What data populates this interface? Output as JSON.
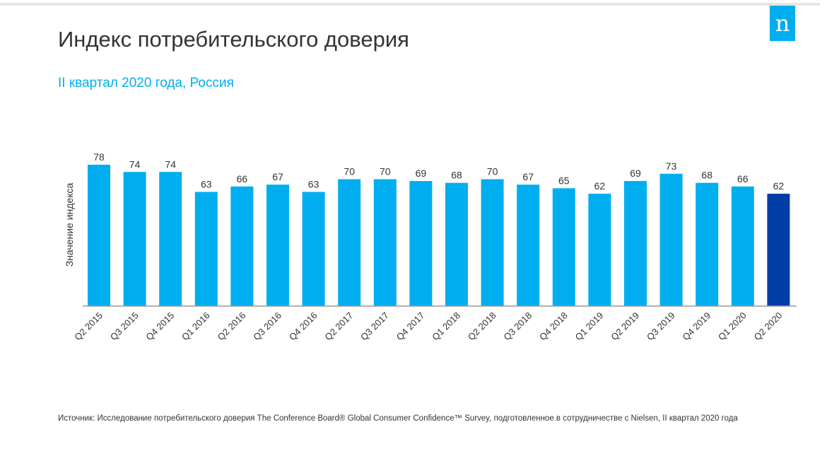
{
  "title": "Индекс потребительского доверия",
  "subtitle": "II квартал 2020 года, Россия",
  "logo_text": "n",
  "source": "Источник: Исследование потребительского доверия The Conference Board® Global Consumer Confidence™ Survey, подготовленное в сотрудничестве с Nielsen, II квартал 2020 года",
  "colors": {
    "bar": "#00aeef",
    "bar_highlight": "#003da5",
    "logo_bg": "#00aeef",
    "axis": "#999999"
  },
  "chart_data": {
    "type": "bar",
    "title": "Индекс потребительского доверия",
    "subtitle": "II квартал 2020 года, Россия",
    "xlabel": "",
    "ylabel": "Значение индекса",
    "ylim": [
      0,
      78
    ],
    "grid": false,
    "legend": "none",
    "highlight_category": "Q2 2020",
    "categories": [
      "Q2 2015",
      "Q3 2015",
      "Q4 2015",
      "Q1 2016",
      "Q2 2016",
      "Q3 2016",
      "Q4 2016",
      "Q2 2017",
      "Q3 2017",
      "Q4 2017",
      "Q1 2018",
      "Q2 2018",
      "Q3 2018",
      "Q4 2018",
      "Q1 2019",
      "Q2 2019",
      "Q3 2019",
      "Q4 2019",
      "Q1 2020",
      "Q2 2020"
    ],
    "values": [
      78,
      74,
      74,
      63,
      66,
      67,
      63,
      70,
      70,
      69,
      68,
      70,
      67,
      65,
      62,
      69,
      73,
      68,
      66,
      62
    ]
  }
}
